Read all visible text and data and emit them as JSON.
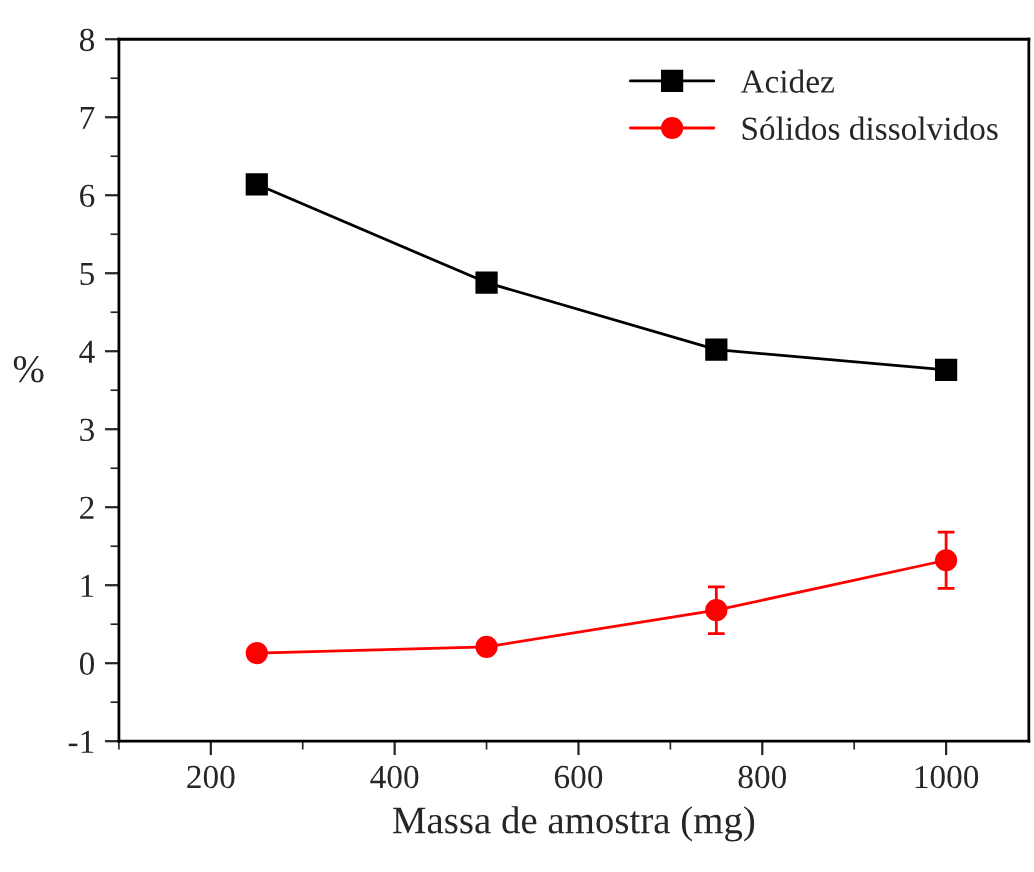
{
  "chart_data": {
    "type": "line",
    "xlabel": "Massa de amostra (mg)",
    "ylabel": "%",
    "x": [
      250,
      500,
      750,
      1000
    ],
    "series": [
      {
        "name": "Acidez",
        "color": "#000000",
        "marker": "square",
        "values": [
          6.14,
          4.88,
          4.02,
          3.76
        ]
      },
      {
        "name": "Sólidos dissolvidos",
        "color": "#ff0000",
        "marker": "circle",
        "values": [
          0.13,
          0.21,
          0.68,
          1.32
        ],
        "errors": [
          null,
          null,
          0.3,
          0.36
        ]
      }
    ],
    "xlim": [
      100,
      1090
    ],
    "xticks": [
      200,
      400,
      600,
      800,
      1000
    ],
    "ylim": [
      -1,
      8
    ],
    "yticks": [
      -1,
      0,
      1,
      2,
      3,
      4,
      5,
      6,
      7,
      8
    ],
    "grid": false,
    "legend": "top right",
    "line_style": "solid"
  }
}
